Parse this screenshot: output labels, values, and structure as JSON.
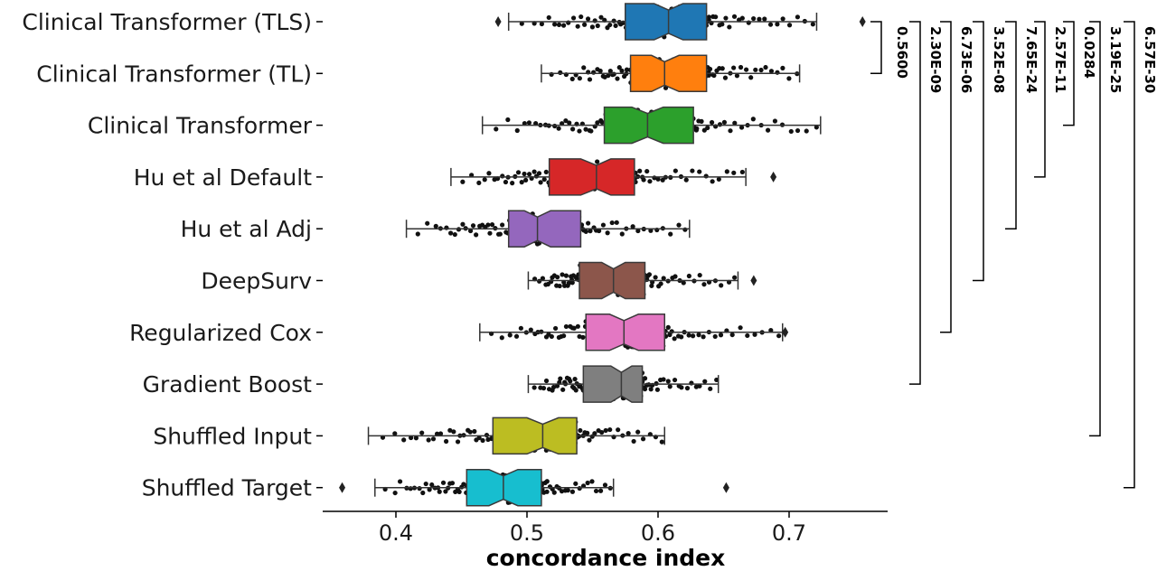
{
  "chart_data": {
    "type": "box",
    "orientation": "horizontal",
    "notched": true,
    "swarm_points_overlay": true,
    "title": "",
    "xlabel": "concordance index",
    "ylabel": "",
    "xlim": [
      0.34,
      0.78
    ],
    "xticks": [
      {
        "value": 0.4,
        "label": "0.4"
      },
      {
        "value": 0.5,
        "label": "0.5"
      },
      {
        "value": 0.6,
        "label": "0.6"
      },
      {
        "value": 0.7,
        "label": "0.7"
      }
    ],
    "grid": false,
    "legend": "none",
    "series": [
      {
        "name": "Clinical Transformer (TLS)",
        "color": "#1f77b4",
        "whislo": 0.486,
        "q1": 0.575,
        "median": 0.608,
        "q3": 0.637,
        "whishi": 0.721,
        "notch": [
          0.597,
          0.619
        ],
        "outliers": [
          0.478,
          0.756
        ]
      },
      {
        "name": "Clinical Transformer (TL)",
        "color": "#ff7f0e",
        "whislo": 0.511,
        "q1": 0.579,
        "median": 0.605,
        "q3": 0.637,
        "whishi": 0.708,
        "notch": [
          0.595,
          0.616
        ],
        "outliers": []
      },
      {
        "name": "Clinical Transformer",
        "color": "#2ca02c",
        "whislo": 0.466,
        "q1": 0.559,
        "median": 0.592,
        "q3": 0.627,
        "whishi": 0.724,
        "notch": [
          0.58,
          0.604
        ],
        "outliers": []
      },
      {
        "name": "Hu et al Default",
        "color": "#d62728",
        "whislo": 0.442,
        "q1": 0.517,
        "median": 0.553,
        "q3": 0.582,
        "whishi": 0.667,
        "notch": [
          0.541,
          0.564
        ],
        "outliers": [
          0.688
        ]
      },
      {
        "name": "Hu et al Adj",
        "color": "#9467bd",
        "whislo": 0.408,
        "q1": 0.486,
        "median": 0.508,
        "q3": 0.541,
        "whishi": 0.624,
        "notch": [
          0.498,
          0.518
        ],
        "outliers": []
      },
      {
        "name": "DeepSurv",
        "color": "#8c564b",
        "whislo": 0.501,
        "q1": 0.54,
        "median": 0.566,
        "q3": 0.59,
        "whishi": 0.661,
        "notch": [
          0.557,
          0.575
        ],
        "outliers": [
          0.673
        ]
      },
      {
        "name": "Regularized Cox",
        "color": "#e377c2",
        "whislo": 0.464,
        "q1": 0.545,
        "median": 0.574,
        "q3": 0.605,
        "whishi": 0.695,
        "notch": [
          0.563,
          0.585
        ],
        "outliers": [
          0.697
        ]
      },
      {
        "name": "Gradient Boost",
        "color": "#7f7f7f",
        "whislo": 0.501,
        "q1": 0.543,
        "median": 0.572,
        "q3": 0.588,
        "whishi": 0.646,
        "notch": [
          0.564,
          0.58
        ],
        "outliers": []
      },
      {
        "name": "Shuffled Input",
        "color": "#bcbd22",
        "whislo": 0.379,
        "q1": 0.474,
        "median": 0.512,
        "q3": 0.538,
        "whishi": 0.605,
        "notch": [
          0.5,
          0.524
        ],
        "outliers": []
      },
      {
        "name": "Shuffled Target",
        "color": "#17becf",
        "whislo": 0.384,
        "q1": 0.454,
        "median": 0.482,
        "q3": 0.511,
        "whishi": 0.566,
        "notch": [
          0.471,
          0.493
        ],
        "outliers": [
          0.359,
          0.652
        ]
      }
    ],
    "significance_brackets": [
      {
        "from": "Clinical Transformer (TLS)",
        "to": "Clinical Transformer (TL)",
        "label": "0.5600"
      },
      {
        "from": "Clinical Transformer (TLS)",
        "to": "Gradient Boost",
        "label": "2.30E-09"
      },
      {
        "from": "Clinical Transformer (TLS)",
        "to": "Regularized Cox",
        "label": "6.73E-06"
      },
      {
        "from": "Clinical Transformer (TLS)",
        "to": "DeepSurv",
        "label": "3.52E-08"
      },
      {
        "from": "Clinical Transformer (TLS)",
        "to": "Hu et al Adj",
        "label": "7.65E-24"
      },
      {
        "from": "Clinical Transformer (TLS)",
        "to": "Hu et al Default",
        "label": "2.57E-11"
      },
      {
        "from": "Clinical Transformer (TLS)",
        "to": "Clinical Transformer",
        "label": "0.0284"
      },
      {
        "from": "Clinical Transformer (TLS)",
        "to": "Shuffled Input",
        "label": "3.19E-25"
      },
      {
        "from": "Clinical Transformer (TLS)",
        "to": "Shuffled Target",
        "label": "6.57E-30"
      }
    ]
  }
}
